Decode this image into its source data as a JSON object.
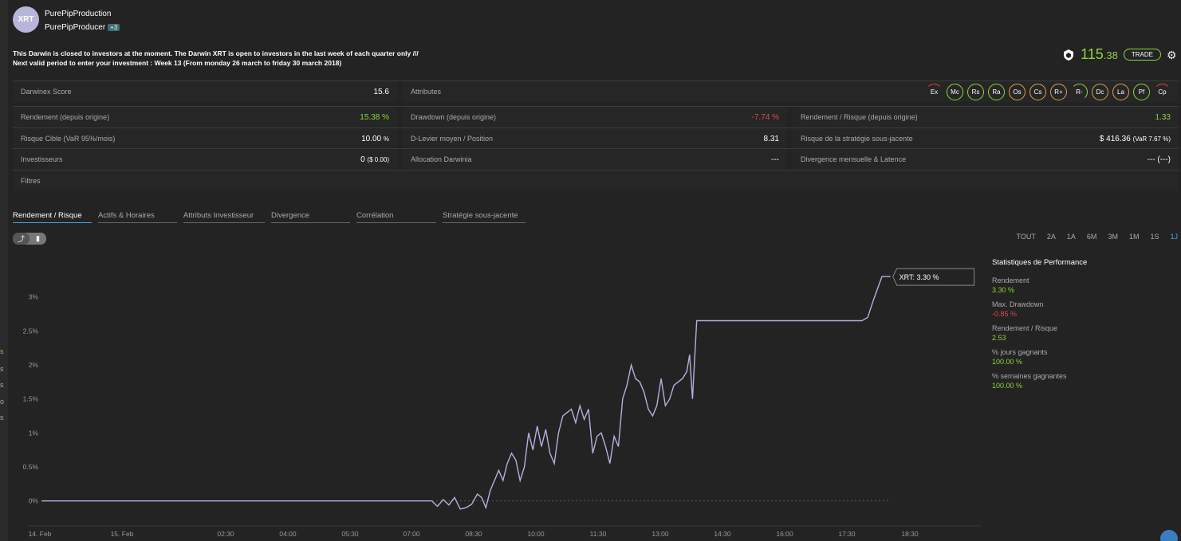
{
  "header": {
    "avatar_text": "XRT",
    "darwin_name": "PurePipProduction",
    "producer": "PurePipProducer",
    "producer_badge": "+3"
  },
  "notice": {
    "line1": "This Darwin is closed to investors at the moment. The Darwin XRT is open to investors in the last week of each quarter only ///",
    "line2": "Next valid period to enter your investment : Week 13 (From monday 26 march to friday 30 march 2018)"
  },
  "summary": {
    "score_main": "115",
    "score_decimals": ".38",
    "trade_label": "TRADE"
  },
  "stats": {
    "darwinex_score_label": "Darwinex Score",
    "darwinex_score_value": "15.6",
    "attributes_label": "Attributes",
    "attribute_badges": [
      "Ex",
      "Mc",
      "Rs",
      "Ra",
      "Os",
      "Cs",
      "R+",
      "R-",
      "Dc",
      "La",
      "Pf",
      "Cp"
    ],
    "rendement_label": "Rendement (depuis origine)",
    "rendement_value": "15.38 %",
    "drawdown_label": "Drawdown (depuis origine)",
    "drawdown_value": "-7.74 %",
    "rr_label": "Rendement / Risque (depuis origine)",
    "rr_value": "1.33",
    "risque_label": "Risque Cible (VaR 95%/mois)",
    "risque_value": "10.00",
    "risque_unit": "%",
    "levier_label": "D-Levier moyen / Position",
    "levier_value": "8.31",
    "strat_risk_label": "Risque de la stratégie sous-jacente",
    "strat_risk_value": "$ 416.36",
    "strat_risk_sub": "(VaR 7.67 %)",
    "investisseurs_label": "Investisseurs",
    "investisseurs_value": "0",
    "investisseurs_sub": "($ 0.00)",
    "allocation_label": "Allocation Darwinia",
    "allocation_value": "---",
    "divergence_label": "Divergence mensuelle & Latence",
    "divergence_value": "--- (---)",
    "filtres_label": "Filtres"
  },
  "tabs": [
    "Rendement / Risque",
    "Actifs & Horaires",
    "Attributs Investisseur",
    "Divergence",
    "Corrélation",
    "Stratégie sous-jacente"
  ],
  "ranges": [
    "TOUT",
    "2A",
    "1A",
    "6M",
    "3M",
    "1M",
    "1S",
    "1J"
  ],
  "performance": {
    "title": "Statistiques de Performance",
    "items": [
      {
        "label": "Rendement",
        "value": "3.30 %",
        "color": "green"
      },
      {
        "label": "Max. Drawdown",
        "value": "-0.85 %",
        "color": "red"
      },
      {
        "label": "Rendement / Risque",
        "value": "2.53",
        "color": "green"
      },
      {
        "label": "% jours gagnants",
        "value": "100.00 %",
        "color": "green"
      },
      {
        "label": "% semaines gagnantes",
        "value": "100.00 %",
        "color": "green"
      }
    ]
  },
  "colors": {
    "accent_green": "#8ad63a",
    "negative_red": "#e04646",
    "line": "#b3b0dd"
  },
  "chart_data": {
    "type": "line",
    "series_label": "XRT: 3.30 %",
    "y_ticks": [
      "0%",
      "0.5%",
      "1%",
      "1.5%",
      "2%",
      "2.5%",
      "3%"
    ],
    "ylim": [
      -0.25,
      3.5
    ],
    "x_ticks": [
      "14. Feb",
      "15. Feb",
      "02:30",
      "04:00",
      "05:30",
      "07:00",
      "08:30",
      "10:00",
      "11:30",
      "13:00",
      "14:30",
      "16:00",
      "17:30",
      "18:30"
    ],
    "points": [
      [
        0,
        0.0
      ],
      [
        12.3,
        0.0
      ],
      [
        13.7,
        0.0
      ],
      [
        13.9,
        -0.08
      ],
      [
        14.1,
        0.02
      ],
      [
        14.3,
        -0.06
      ],
      [
        14.5,
        0.05
      ],
      [
        14.7,
        -0.12
      ],
      [
        14.9,
        -0.1
      ],
      [
        15.1,
        -0.05
      ],
      [
        15.3,
        0.1
      ],
      [
        15.45,
        0.05
      ],
      [
        15.6,
        -0.1
      ],
      [
        15.75,
        0.15
      ],
      [
        15.9,
        0.3
      ],
      [
        16.05,
        0.45
      ],
      [
        16.2,
        0.3
      ],
      [
        16.35,
        0.55
      ],
      [
        16.5,
        0.7
      ],
      [
        16.65,
        0.6
      ],
      [
        16.8,
        0.3
      ],
      [
        16.95,
        0.5
      ],
      [
        17.1,
        1.0
      ],
      [
        17.25,
        0.75
      ],
      [
        17.4,
        1.1
      ],
      [
        17.55,
        0.8
      ],
      [
        17.7,
        1.05
      ],
      [
        17.85,
        0.7
      ],
      [
        18.0,
        0.55
      ],
      [
        18.15,
        1.0
      ],
      [
        18.3,
        1.25
      ],
      [
        18.45,
        1.3
      ],
      [
        18.6,
        1.35
      ],
      [
        18.75,
        1.15
      ],
      [
        18.9,
        1.4
      ],
      [
        19.05,
        1.2
      ],
      [
        19.2,
        1.35
      ],
      [
        19.35,
        0.7
      ],
      [
        19.5,
        0.95
      ],
      [
        19.65,
        1.0
      ],
      [
        19.8,
        0.8
      ],
      [
        19.95,
        0.55
      ],
      [
        20.1,
        0.95
      ],
      [
        20.25,
        0.8
      ],
      [
        20.4,
        1.5
      ],
      [
        20.55,
        1.7
      ],
      [
        20.7,
        2.0
      ],
      [
        20.85,
        1.8
      ],
      [
        21.0,
        1.75
      ],
      [
        21.15,
        1.6
      ],
      [
        21.3,
        1.35
      ],
      [
        21.45,
        1.25
      ],
      [
        21.6,
        1.4
      ],
      [
        21.75,
        1.8
      ],
      [
        21.9,
        1.4
      ],
      [
        22.05,
        1.5
      ],
      [
        22.2,
        1.7
      ],
      [
        22.35,
        1.75
      ],
      [
        22.5,
        1.8
      ],
      [
        22.65,
        1.9
      ],
      [
        22.75,
        2.15
      ],
      [
        22.85,
        1.5
      ],
      [
        23.0,
        2.65
      ],
      [
        28.8,
        2.65
      ],
      [
        29.0,
        2.7
      ],
      [
        29.2,
        2.95
      ],
      [
        29.5,
        3.3
      ],
      [
        29.8,
        3.3
      ]
    ],
    "baseline_end": 29.8
  }
}
